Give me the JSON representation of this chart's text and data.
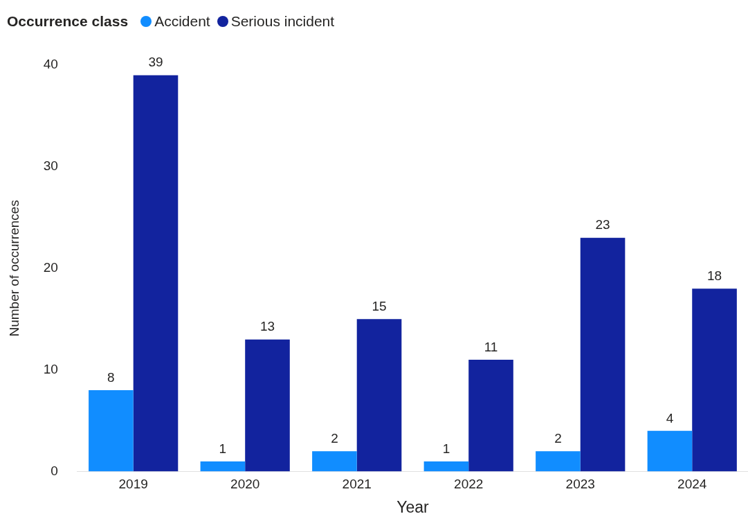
{
  "chart_data": {
    "type": "bar",
    "legend_title": "Occurrence class",
    "xlabel": "Year",
    "ylabel": "Number of occurrences",
    "categories": [
      "2019",
      "2020",
      "2021",
      "2022",
      "2023",
      "2024"
    ],
    "series": [
      {
        "name": "Accident",
        "color": "#118dff",
        "values": [
          8,
          1,
          2,
          1,
          2,
          4
        ]
      },
      {
        "name": "Serious incident",
        "color": "#12239e",
        "values": [
          39,
          13,
          15,
          11,
          23,
          18
        ]
      }
    ],
    "ylim": [
      0,
      40
    ],
    "yticks": [
      0,
      10,
      20,
      30,
      40
    ],
    "grid": false,
    "legend": "top left",
    "data_labels": true
  }
}
